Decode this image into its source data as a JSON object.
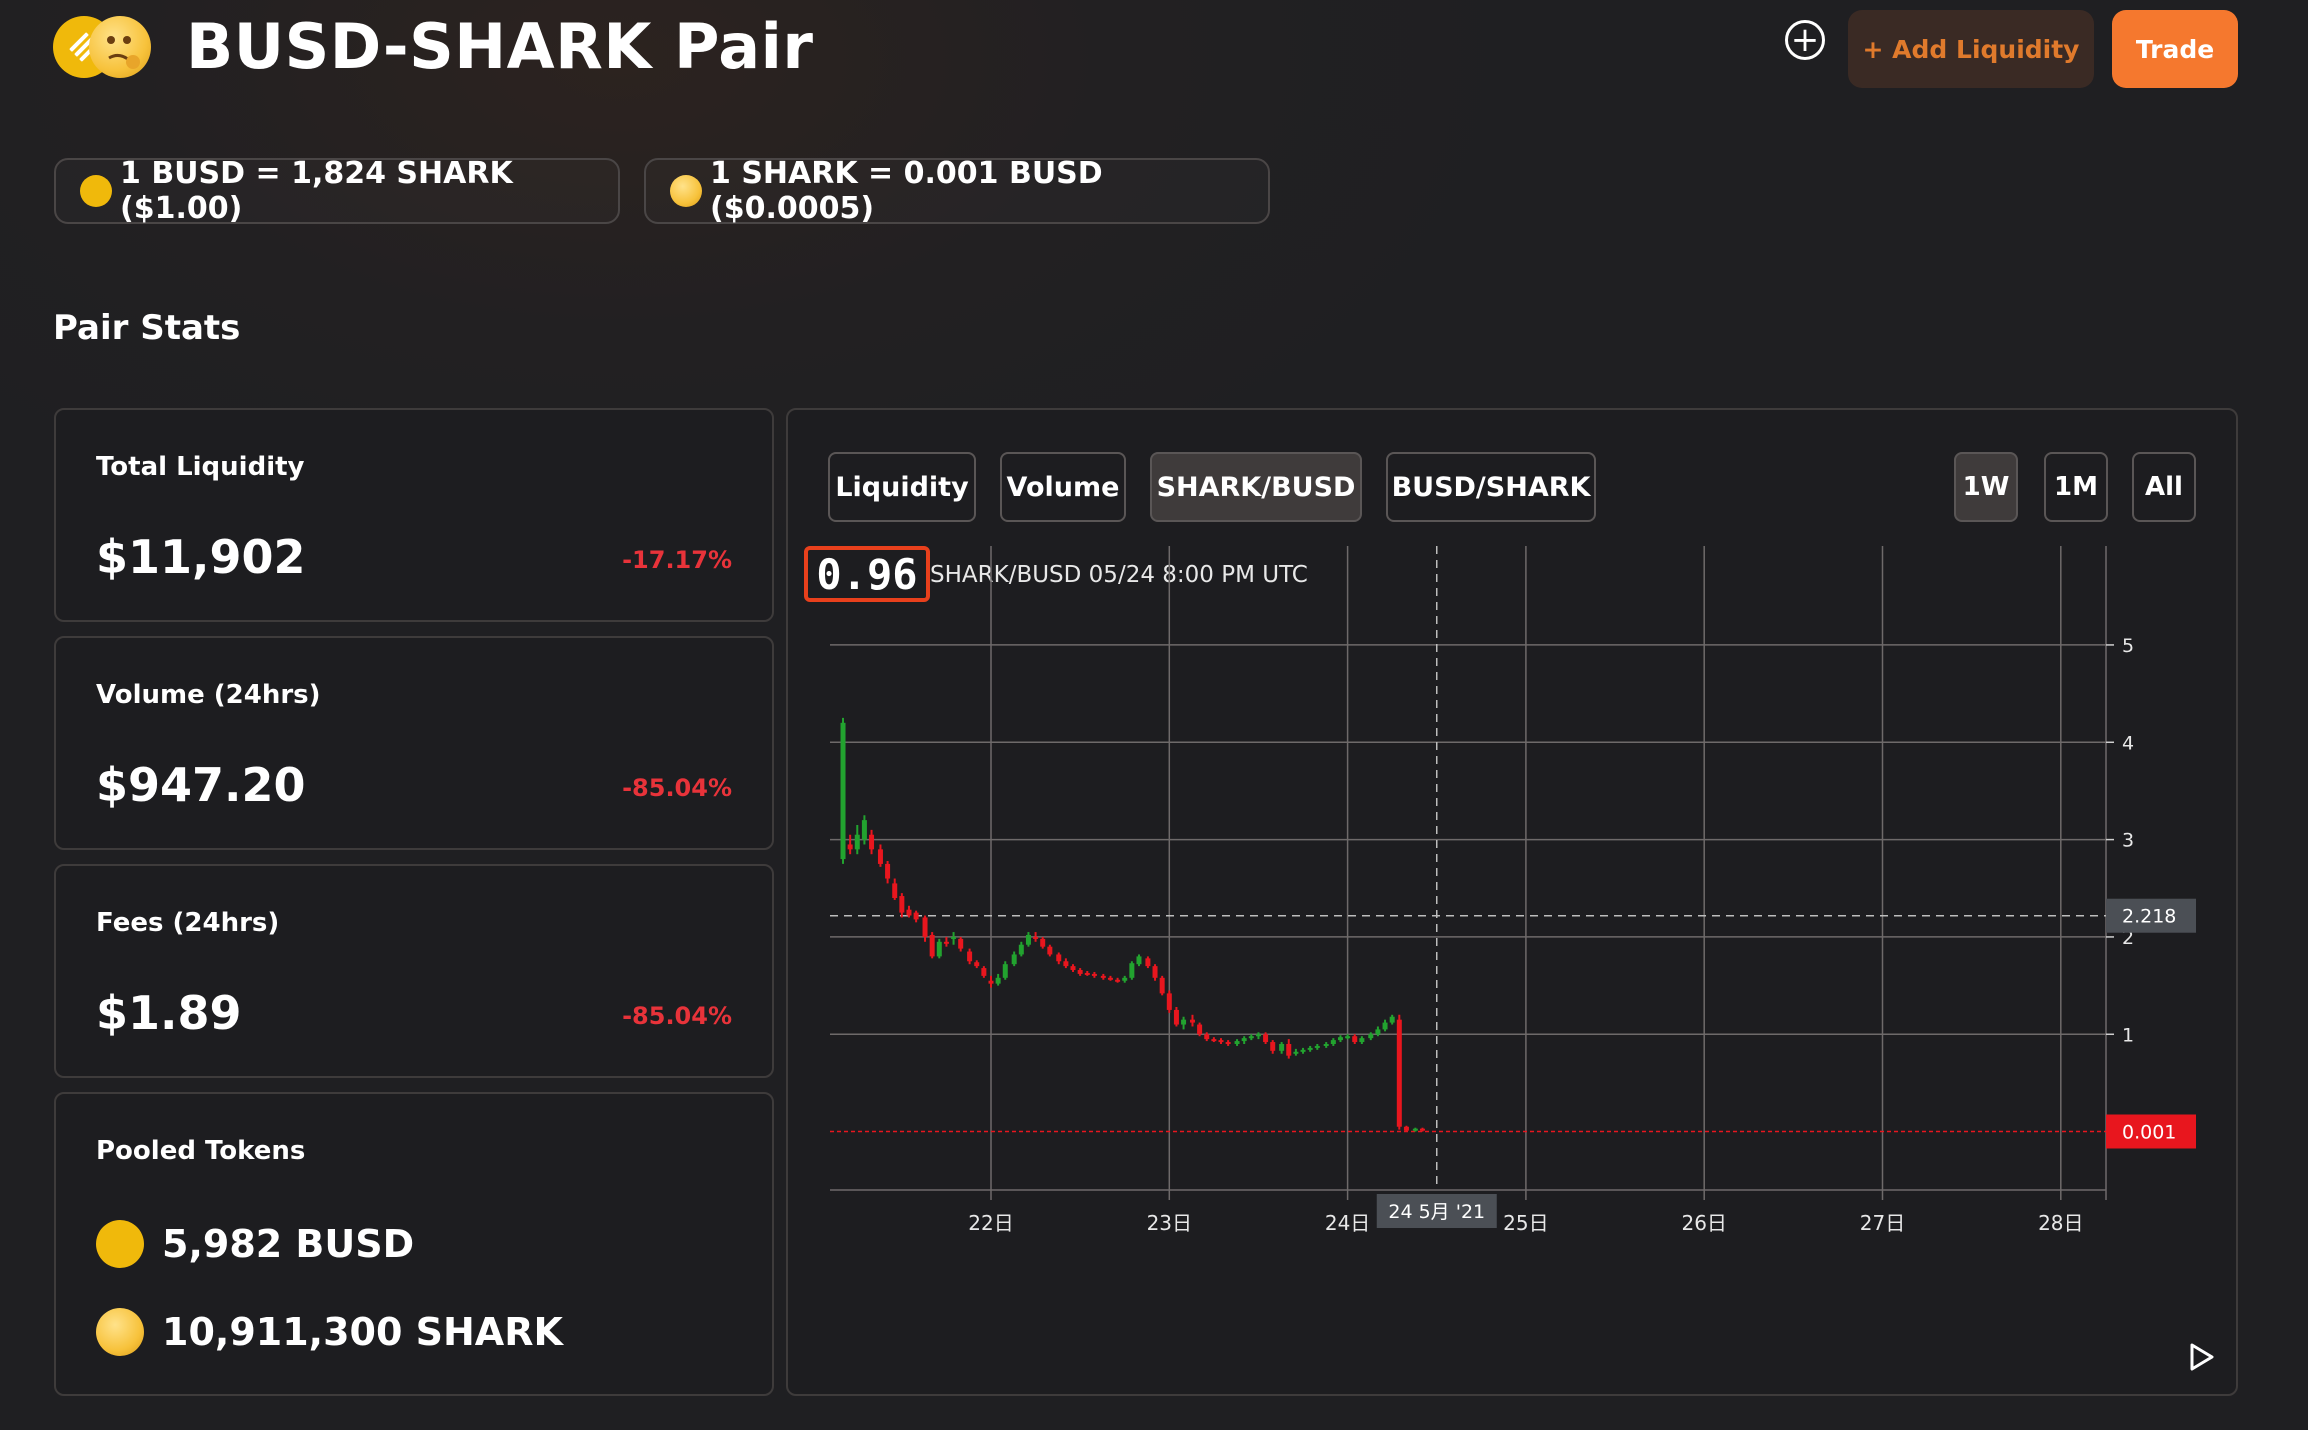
{
  "header": {
    "title": "BUSD-SHARK Pair",
    "add_liquidity_label": "+ Add Liquidity",
    "trade_label": "Trade",
    "plus_label": "+"
  },
  "rates": [
    {
      "text": "1 BUSD = 1,824 SHARK ($1.00)",
      "icon": "busd-coin-icon"
    },
    {
      "text": "1 SHARK = 0.001 BUSD ($0.0005)",
      "icon": "shark-coin-icon"
    }
  ],
  "section_title": "Pair Stats",
  "stats": [
    {
      "label": "Total Liquidity",
      "value": "$11,902",
      "change": "-17.17%"
    },
    {
      "label": "Volume (24hrs)",
      "value": "$947.20",
      "change": "-85.04%"
    },
    {
      "label": "Fees (24hrs)",
      "value": "$1.89",
      "change": "-85.04%"
    }
  ],
  "pooled": {
    "label": "Pooled Tokens",
    "busd": "5,982 BUSD",
    "shark": "10,911,300 SHARK"
  },
  "chart_tabs": [
    "Liquidity",
    "Volume",
    "SHARK/BUSD",
    "BUSD/SHARK"
  ],
  "active_tab": "SHARK/BUSD",
  "ranges": [
    "1W",
    "1M",
    "All"
  ],
  "active_range": "1W",
  "price_display": {
    "value": "0.96",
    "caption": "SHARK/BUSD 05/24 8:00 PM UTC"
  },
  "colors": {
    "accent": "#f5782e",
    "up": "#22a32f",
    "down": "#e8161e",
    "negative_change": "#e8333a",
    "busd": "#f0b90b"
  },
  "chart_data": {
    "type": "candlestick",
    "x_ticks": [
      "22日",
      "23日",
      "24日",
      "25日",
      "26日",
      "27日",
      "28日"
    ],
    "y_ticks": [
      1,
      2,
      3,
      4,
      5
    ],
    "ylim": [
      -0.6,
      5.4
    ],
    "x_range_days": [
      21.08,
      28.25
    ],
    "crosshair": {
      "x_label": "24 5月 '21",
      "x_day": 24.5,
      "y_value": 2.218,
      "y_label": "2.218"
    },
    "last_price": {
      "value": 0.001,
      "label": "0.001"
    },
    "candles": [
      {
        "t": 21.17,
        "o": 2.8,
        "h": 4.25,
        "l": 2.75,
        "c": 4.2
      },
      {
        "t": 21.21,
        "o": 2.95,
        "h": 3.05,
        "l": 2.85,
        "c": 2.9
      },
      {
        "t": 21.25,
        "o": 2.9,
        "h": 3.15,
        "l": 2.85,
        "c": 3.05
      },
      {
        "t": 21.29,
        "o": 3.0,
        "h": 3.25,
        "l": 2.95,
        "c": 3.2
      },
      {
        "t": 21.33,
        "o": 3.05,
        "h": 3.1,
        "l": 2.85,
        "c": 2.9
      },
      {
        "t": 21.38,
        "o": 2.9,
        "h": 2.95,
        "l": 2.72,
        "c": 2.75
      },
      {
        "t": 21.42,
        "o": 2.75,
        "h": 2.78,
        "l": 2.55,
        "c": 2.6
      },
      {
        "t": 21.46,
        "o": 2.55,
        "h": 2.6,
        "l": 2.38,
        "c": 2.4
      },
      {
        "t": 21.5,
        "o": 2.42,
        "h": 2.45,
        "l": 2.2,
        "c": 2.25
      },
      {
        "t": 21.54,
        "o": 2.28,
        "h": 2.32,
        "l": 2.2,
        "c": 2.22
      },
      {
        "t": 21.58,
        "o": 2.25,
        "h": 2.27,
        "l": 2.15,
        "c": 2.18
      },
      {
        "t": 21.63,
        "o": 2.2,
        "h": 2.22,
        "l": 1.95,
        "c": 2.0
      },
      {
        "t": 21.67,
        "o": 2.02,
        "h": 2.05,
        "l": 1.78,
        "c": 1.8
      },
      {
        "t": 21.71,
        "o": 1.8,
        "h": 1.98,
        "l": 1.78,
        "c": 1.95
      },
      {
        "t": 21.75,
        "o": 1.95,
        "h": 2.0,
        "l": 1.9,
        "c": 1.93
      },
      {
        "t": 21.79,
        "o": 1.98,
        "h": 2.05,
        "l": 1.92,
        "c": 2.0
      },
      {
        "t": 21.83,
        "o": 1.98,
        "h": 2.0,
        "l": 1.85,
        "c": 1.88
      },
      {
        "t": 21.88,
        "o": 1.85,
        "h": 1.88,
        "l": 1.72,
        "c": 1.75
      },
      {
        "t": 21.92,
        "o": 1.74,
        "h": 1.76,
        "l": 1.68,
        "c": 1.7
      },
      {
        "t": 21.96,
        "o": 1.68,
        "h": 1.7,
        "l": 1.58,
        "c": 1.6
      },
      {
        "t": 22.0,
        "o": 1.55,
        "h": 1.6,
        "l": 1.48,
        "c": 1.52
      },
      {
        "t": 22.04,
        "o": 1.52,
        "h": 1.62,
        "l": 1.5,
        "c": 1.58
      },
      {
        "t": 22.08,
        "o": 1.58,
        "h": 1.75,
        "l": 1.56,
        "c": 1.72
      },
      {
        "t": 22.13,
        "o": 1.72,
        "h": 1.85,
        "l": 1.7,
        "c": 1.82
      },
      {
        "t": 22.17,
        "o": 1.82,
        "h": 1.95,
        "l": 1.8,
        "c": 1.92
      },
      {
        "t": 22.21,
        "o": 1.92,
        "h": 2.05,
        "l": 1.9,
        "c": 2.02
      },
      {
        "t": 22.25,
        "o": 2.0,
        "h": 2.05,
        "l": 1.95,
        "c": 1.98
      },
      {
        "t": 22.29,
        "o": 1.98,
        "h": 2.0,
        "l": 1.88,
        "c": 1.9
      },
      {
        "t": 22.33,
        "o": 1.9,
        "h": 1.92,
        "l": 1.8,
        "c": 1.82
      },
      {
        "t": 22.38,
        "o": 1.82,
        "h": 1.84,
        "l": 1.72,
        "c": 1.75
      },
      {
        "t": 22.42,
        "o": 1.75,
        "h": 1.78,
        "l": 1.68,
        "c": 1.7
      },
      {
        "t": 22.46,
        "o": 1.7,
        "h": 1.72,
        "l": 1.64,
        "c": 1.66
      },
      {
        "t": 22.5,
        "o": 1.66,
        "h": 1.68,
        "l": 1.6,
        "c": 1.62
      },
      {
        "t": 22.54,
        "o": 1.63,
        "h": 1.65,
        "l": 1.6,
        "c": 1.62
      },
      {
        "t": 22.58,
        "o": 1.62,
        "h": 1.64,
        "l": 1.58,
        "c": 1.6
      },
      {
        "t": 22.63,
        "o": 1.6,
        "h": 1.62,
        "l": 1.56,
        "c": 1.58
      },
      {
        "t": 22.67,
        "o": 1.58,
        "h": 1.6,
        "l": 1.55,
        "c": 1.57
      },
      {
        "t": 22.71,
        "o": 1.56,
        "h": 1.58,
        "l": 1.53,
        "c": 1.55
      },
      {
        "t": 22.75,
        "o": 1.55,
        "h": 1.6,
        "l": 1.53,
        "c": 1.58
      },
      {
        "t": 22.79,
        "o": 1.58,
        "h": 1.75,
        "l": 1.56,
        "c": 1.73
      },
      {
        "t": 22.83,
        "o": 1.72,
        "h": 1.82,
        "l": 1.7,
        "c": 1.8
      },
      {
        "t": 22.88,
        "o": 1.78,
        "h": 1.8,
        "l": 1.68,
        "c": 1.7
      },
      {
        "t": 22.92,
        "o": 1.7,
        "h": 1.72,
        "l": 1.55,
        "c": 1.58
      },
      {
        "t": 22.96,
        "o": 1.58,
        "h": 1.6,
        "l": 1.4,
        "c": 1.42
      },
      {
        "t": 23.0,
        "o": 1.42,
        "h": 1.45,
        "l": 1.22,
        "c": 1.25
      },
      {
        "t": 23.04,
        "o": 1.25,
        "h": 1.28,
        "l": 1.08,
        "c": 1.1
      },
      {
        "t": 23.08,
        "o": 1.1,
        "h": 1.18,
        "l": 1.05,
        "c": 1.15
      },
      {
        "t": 23.13,
        "o": 1.15,
        "h": 1.2,
        "l": 1.08,
        "c": 1.12
      },
      {
        "t": 23.17,
        "o": 1.1,
        "h": 1.12,
        "l": 0.98,
        "c": 1.0
      },
      {
        "t": 23.21,
        "o": 1.0,
        "h": 1.02,
        "l": 0.93,
        "c": 0.95
      },
      {
        "t": 23.25,
        "o": 0.95,
        "h": 0.97,
        "l": 0.92,
        "c": 0.94
      },
      {
        "t": 23.29,
        "o": 0.94,
        "h": 0.96,
        "l": 0.9,
        "c": 0.92
      },
      {
        "t": 23.33,
        "o": 0.92,
        "h": 0.94,
        "l": 0.88,
        "c": 0.9
      },
      {
        "t": 23.38,
        "o": 0.9,
        "h": 0.95,
        "l": 0.88,
        "c": 0.93
      },
      {
        "t": 23.42,
        "o": 0.93,
        "h": 0.98,
        "l": 0.9,
        "c": 0.96
      },
      {
        "t": 23.46,
        "o": 0.96,
        "h": 1.0,
        "l": 0.94,
        "c": 0.98
      },
      {
        "t": 23.5,
        "o": 0.98,
        "h": 1.02,
        "l": 0.95,
        "c": 1.0
      },
      {
        "t": 23.54,
        "o": 1.0,
        "h": 1.02,
        "l": 0.9,
        "c": 0.92
      },
      {
        "t": 23.58,
        "o": 0.92,
        "h": 0.94,
        "l": 0.8,
        "c": 0.83
      },
      {
        "t": 23.63,
        "o": 0.83,
        "h": 0.92,
        "l": 0.8,
        "c": 0.9
      },
      {
        "t": 23.67,
        "o": 0.9,
        "h": 0.95,
        "l": 0.75,
        "c": 0.78
      },
      {
        "t": 23.71,
        "o": 0.8,
        "h": 0.85,
        "l": 0.78,
        "c": 0.82
      },
      {
        "t": 23.75,
        "o": 0.82,
        "h": 0.86,
        "l": 0.8,
        "c": 0.84
      },
      {
        "t": 23.79,
        "o": 0.84,
        "h": 0.88,
        "l": 0.82,
        "c": 0.86
      },
      {
        "t": 23.83,
        "o": 0.86,
        "h": 0.9,
        "l": 0.84,
        "c": 0.88
      },
      {
        "t": 23.88,
        "o": 0.88,
        "h": 0.92,
        "l": 0.86,
        "c": 0.9
      },
      {
        "t": 23.92,
        "o": 0.9,
        "h": 0.96,
        "l": 0.88,
        "c": 0.94
      },
      {
        "t": 23.96,
        "o": 0.94,
        "h": 0.99,
        "l": 0.92,
        "c": 0.97
      },
      {
        "t": 24.0,
        "o": 0.97,
        "h": 1.0,
        "l": 0.95,
        "c": 0.98
      },
      {
        "t": 24.04,
        "o": 0.98,
        "h": 1.0,
        "l": 0.9,
        "c": 0.92
      },
      {
        "t": 24.08,
        "o": 0.92,
        "h": 0.98,
        "l": 0.9,
        "c": 0.96
      },
      {
        "t": 24.13,
        "o": 0.96,
        "h": 1.02,
        "l": 0.94,
        "c": 1.0
      },
      {
        "t": 24.17,
        "o": 1.0,
        "h": 1.08,
        "l": 0.98,
        "c": 1.05
      },
      {
        "t": 24.21,
        "o": 1.05,
        "h": 1.15,
        "l": 1.03,
        "c": 1.12
      },
      {
        "t": 24.25,
        "o": 1.12,
        "h": 1.2,
        "l": 1.1,
        "c": 1.18
      },
      {
        "t": 24.29,
        "o": 1.15,
        "h": 1.2,
        "l": 0.02,
        "c": 0.05
      },
      {
        "t": 24.33,
        "o": 0.05,
        "h": 0.06,
        "l": 0.0,
        "c": 0.01
      },
      {
        "t": 24.38,
        "o": 0.01,
        "h": 0.04,
        "l": 0.0,
        "c": 0.03
      },
      {
        "t": 24.42,
        "o": 0.03,
        "h": 0.04,
        "l": 0.0,
        "c": 0.01
      }
    ]
  }
}
